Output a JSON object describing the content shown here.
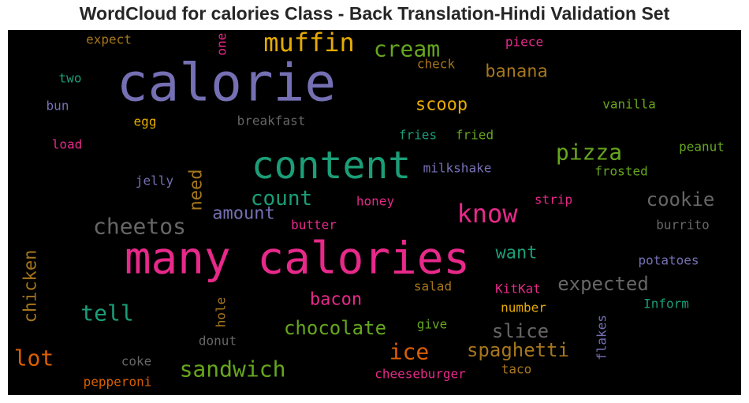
{
  "title": "WordCloud for calories Class - Back Translation-Hindi Validation Set",
  "chart_data": {
    "type": "wordcloud",
    "background": "#000000",
    "words": [
      {
        "text": "calorie",
        "weight": 66,
        "color": "#7570b3",
        "vertical": false
      },
      {
        "text": "many calories",
        "weight": 56,
        "color": "#e7298a",
        "vertical": false
      },
      {
        "text": "content",
        "weight": 48,
        "color": "#1b9e77",
        "vertical": false
      },
      {
        "text": "muffin",
        "weight": 32,
        "color": "#e6ab02",
        "vertical": false
      },
      {
        "text": "know",
        "weight": 32,
        "color": "#e7298a",
        "vertical": false
      },
      {
        "text": "cream",
        "weight": 28,
        "color": "#66a61e",
        "vertical": false
      },
      {
        "text": "pizza",
        "weight": 28,
        "color": "#66a61e",
        "vertical": false
      },
      {
        "text": "ice",
        "weight": 28,
        "color": "#d95f02",
        "vertical": false
      },
      {
        "text": "lot",
        "weight": 28,
        "color": "#d95f02",
        "vertical": false
      },
      {
        "text": "tell",
        "weight": 28,
        "color": "#1b9e77",
        "vertical": false
      },
      {
        "text": "sandwich",
        "weight": 28,
        "color": "#66a61e",
        "vertical": false
      },
      {
        "text": "cheetos",
        "weight": 28,
        "color": "#666666",
        "vertical": false
      },
      {
        "text": "count",
        "weight": 26,
        "color": "#1b9e77",
        "vertical": false
      },
      {
        "text": "chocolate",
        "weight": 24,
        "color": "#66a61e",
        "vertical": false
      },
      {
        "text": "spaghetti",
        "weight": 24,
        "color": "#a6761d",
        "vertical": false
      },
      {
        "text": "slice",
        "weight": 24,
        "color": "#666666",
        "vertical": false
      },
      {
        "text": "expected",
        "weight": 24,
        "color": "#666666",
        "vertical": false
      },
      {
        "text": "cookie",
        "weight": 24,
        "color": "#666666",
        "vertical": false
      },
      {
        "text": "banana",
        "weight": 22,
        "color": "#a6761d",
        "vertical": false
      },
      {
        "text": "scoop",
        "weight": 22,
        "color": "#e6ab02",
        "vertical": false
      },
      {
        "text": "amount",
        "weight": 22,
        "color": "#7570b3",
        "vertical": false
      },
      {
        "text": "want",
        "weight": 22,
        "color": "#1b9e77",
        "vertical": false
      },
      {
        "text": "bacon",
        "weight": 22,
        "color": "#e7298a",
        "vertical": false
      },
      {
        "text": "need",
        "weight": 22,
        "color": "#a6761d",
        "vertical": true
      },
      {
        "text": "chicken",
        "weight": 22,
        "color": "#a6761d",
        "vertical": true
      },
      {
        "text": "breakfast",
        "weight": 16,
        "color": "#666666",
        "vertical": false
      },
      {
        "text": "vanilla",
        "weight": 16,
        "color": "#66a61e",
        "vertical": false
      },
      {
        "text": "expect",
        "weight": 16,
        "color": "#a6761d",
        "vertical": false
      },
      {
        "text": "piece",
        "weight": 16,
        "color": "#e7298a",
        "vertical": false
      },
      {
        "text": "check",
        "weight": 16,
        "color": "#a6761d",
        "vertical": false
      },
      {
        "text": "two",
        "weight": 16,
        "color": "#1b9e77",
        "vertical": false
      },
      {
        "text": "bun",
        "weight": 16,
        "color": "#7570b3",
        "vertical": false
      },
      {
        "text": "egg",
        "weight": 16,
        "color": "#e6ab02",
        "vertical": false
      },
      {
        "text": "load",
        "weight": 16,
        "color": "#e7298a",
        "vertical": false
      },
      {
        "text": "fries",
        "weight": 16,
        "color": "#1b9e77",
        "vertical": false
      },
      {
        "text": "fried",
        "weight": 16,
        "color": "#66a61e",
        "vertical": false
      },
      {
        "text": "peanut",
        "weight": 16,
        "color": "#66a61e",
        "vertical": false
      },
      {
        "text": "frosted",
        "weight": 16,
        "color": "#66a61e",
        "vertical": false
      },
      {
        "text": "milkshake",
        "weight": 16,
        "color": "#7570b3",
        "vertical": false
      },
      {
        "text": "jelly",
        "weight": 16,
        "color": "#7570b3",
        "vertical": false
      },
      {
        "text": "honey",
        "weight": 16,
        "color": "#e7298a",
        "vertical": false
      },
      {
        "text": "strip",
        "weight": 16,
        "color": "#e7298a",
        "vertical": false
      },
      {
        "text": "butter",
        "weight": 16,
        "color": "#e7298a",
        "vertical": false
      },
      {
        "text": "burrito",
        "weight": 16,
        "color": "#666666",
        "vertical": false
      },
      {
        "text": "potatoes",
        "weight": 16,
        "color": "#7570b3",
        "vertical": false
      },
      {
        "text": "salad",
        "weight": 16,
        "color": "#a6761d",
        "vertical": false
      },
      {
        "text": "KitKat",
        "weight": 16,
        "color": "#e7298a",
        "vertical": false
      },
      {
        "text": "Inform",
        "weight": 16,
        "color": "#1b9e77",
        "vertical": false
      },
      {
        "text": "number",
        "weight": 16,
        "color": "#e6ab02",
        "vertical": false
      },
      {
        "text": "give",
        "weight": 16,
        "color": "#66a61e",
        "vertical": false
      },
      {
        "text": "donut",
        "weight": 16,
        "color": "#666666",
        "vertical": false
      },
      {
        "text": "coke",
        "weight": 16,
        "color": "#666666",
        "vertical": false
      },
      {
        "text": "cheeseburger",
        "weight": 16,
        "color": "#e7298a",
        "vertical": false
      },
      {
        "text": "taco",
        "weight": 16,
        "color": "#a6761d",
        "vertical": false
      },
      {
        "text": "pepperoni",
        "weight": 16,
        "color": "#d95f02",
        "vertical": false
      },
      {
        "text": "one",
        "weight": 16,
        "color": "#e7298a",
        "vertical": true
      },
      {
        "text": "hole",
        "weight": 16,
        "color": "#a6761d",
        "vertical": true
      },
      {
        "text": "flakes",
        "weight": 16,
        "color": "#7570b3",
        "vertical": true
      }
    ]
  }
}
